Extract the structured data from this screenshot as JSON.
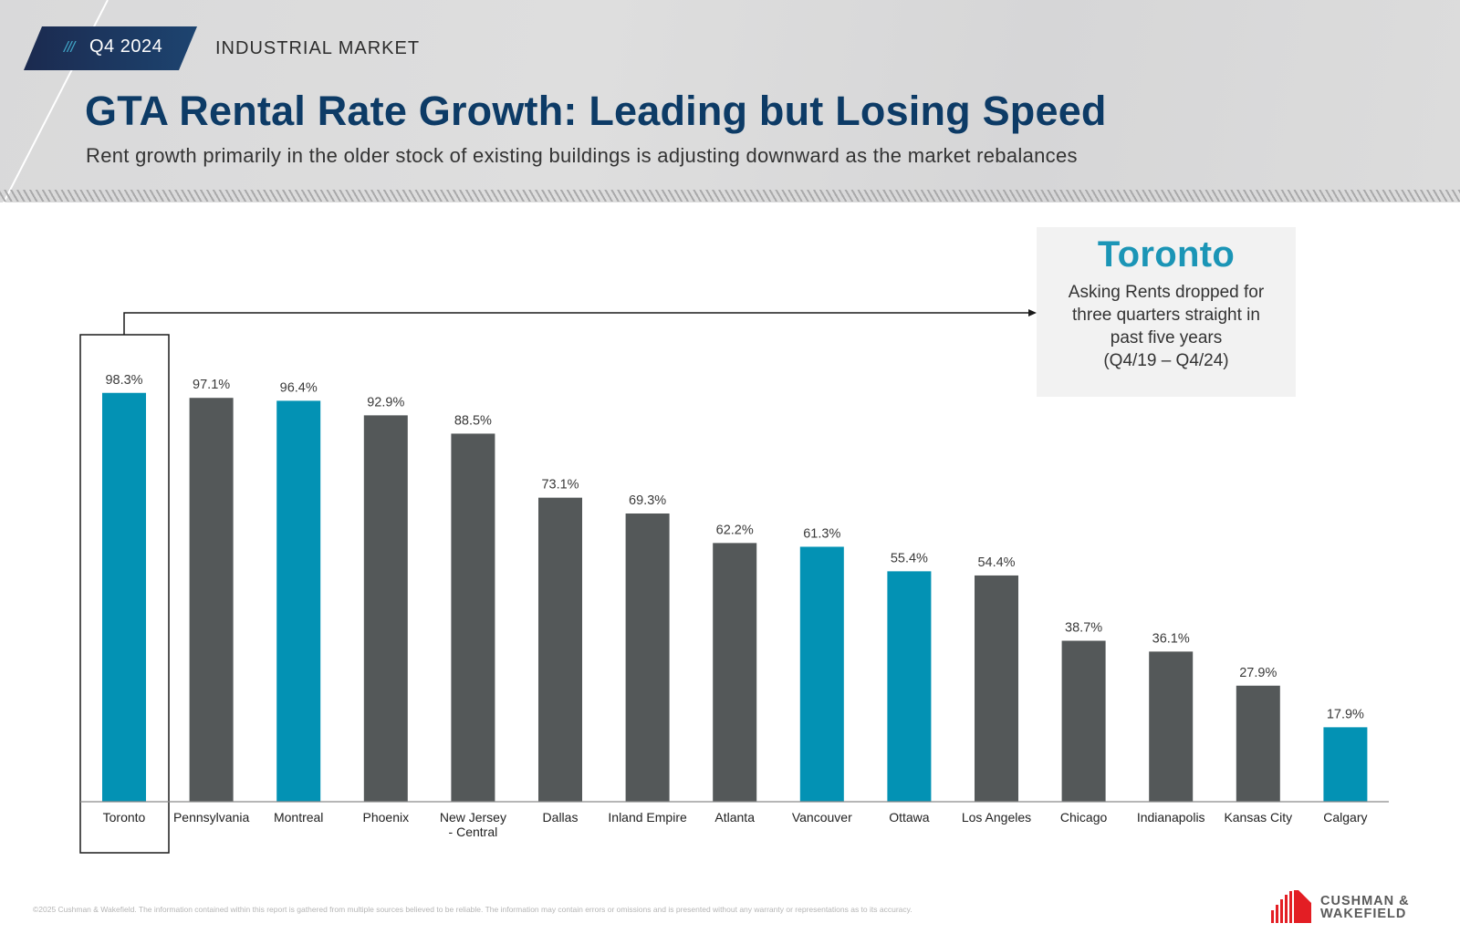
{
  "header": {
    "badge_prefix": "///",
    "badge_period": "Q4 2024",
    "section": "INDUSTRIAL MARKET",
    "title": "GTA Rental Rate Growth: Leading but Losing Speed",
    "subtitle": "Rent growth primarily in the older stock of existing buildings is adjusting downward as the market rebalances"
  },
  "callout": {
    "title": "Toronto",
    "lines": [
      "Asking Rents dropped for",
      "three quarters straight in",
      "past five years",
      "(Q4/19 – Q4/24)"
    ]
  },
  "colors": {
    "canadian_bar": "#0392b4",
    "us_bar": "#545859",
    "title": "#0d3b66",
    "callout_title": "#1b95b6",
    "badge_bg": "#1c2f55",
    "logo_red": "#e31e24"
  },
  "chart_data": {
    "type": "bar",
    "title": "GTA Rental Rate Growth: Leading but Losing Speed",
    "xlabel": "",
    "ylabel": "",
    "ylim": [
      0,
      100
    ],
    "grid": false,
    "value_format": "percent_1dp",
    "highlighted_category": "Toronto",
    "categories": [
      "Toronto",
      "Pennsylvania",
      "Montreal",
      "Phoenix",
      "New Jersey - Central",
      "Dallas",
      "Inland Empire",
      "Atlanta",
      "Vancouver",
      "Ottawa",
      "Los Angeles",
      "Chicago",
      "Indianapolis",
      "Kansas City",
      "Calgary"
    ],
    "category_label_lines": [
      [
        "Toronto"
      ],
      [
        "Pennsylvania"
      ],
      [
        "Montreal"
      ],
      [
        "Phoenix"
      ],
      [
        "New Jersey",
        "- Central"
      ],
      [
        "Dallas"
      ],
      [
        "Inland Empire"
      ],
      [
        "Atlanta"
      ],
      [
        "Vancouver"
      ],
      [
        "Ottawa"
      ],
      [
        "Los Angeles"
      ],
      [
        "Chicago"
      ],
      [
        "Indianapolis"
      ],
      [
        "Kansas City"
      ],
      [
        "Calgary"
      ]
    ],
    "values": [
      98.3,
      97.1,
      96.4,
      92.9,
      88.5,
      73.1,
      69.3,
      62.2,
      61.3,
      55.4,
      54.4,
      38.7,
      36.1,
      27.9,
      17.9
    ],
    "labels": [
      "98.3%",
      "97.1%",
      "96.4%",
      "92.9%",
      "88.5%",
      "73.1%",
      "69.3%",
      "62.2%",
      "61.3%",
      "55.4%",
      "54.4%",
      "38.7%",
      "36.1%",
      "27.9%",
      "17.9%"
    ],
    "groups": [
      "canada",
      "us",
      "canada",
      "us",
      "us",
      "us",
      "us",
      "us",
      "canada",
      "canada",
      "us",
      "us",
      "us",
      "us",
      "canada"
    ]
  },
  "footer": {
    "disclaimer": "©2025 Cushman & Wakefield. The information contained within this report is gathered from multiple sources believed to be reliable. The information may contain errors or omissions and is presented without any warranty or representations as to its accuracy.",
    "logo_line1": "CUSHMAN &",
    "logo_line2": "WAKEFIELD"
  }
}
